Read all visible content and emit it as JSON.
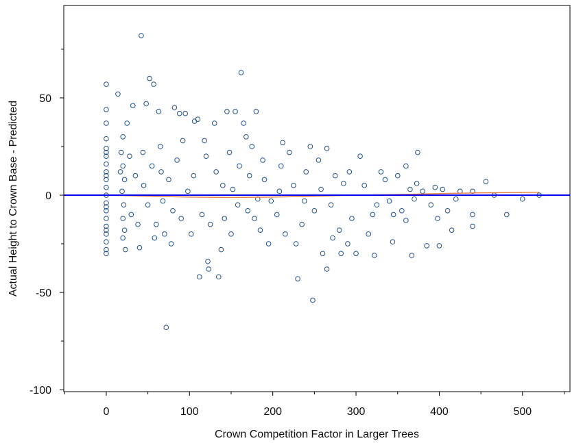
{
  "chart_data": {
    "type": "scatter",
    "x_label": "Crown Competition Factor in Larger Trees",
    "y_label": "Actual Height to Crown Base - Predicted",
    "xlim": [
      -51,
      557
    ],
    "ylim": [
      -101,
      97.5
    ],
    "xticks": [
      0,
      100,
      200,
      300,
      400,
      500
    ],
    "yticks": [
      -100,
      -50,
      0,
      50
    ],
    "xticks_minor": [
      -50,
      50,
      150,
      250,
      350,
      450,
      550
    ],
    "yticks_minor": [
      -75,
      -25,
      25,
      75
    ],
    "reference_line": {
      "y": 0,
      "color": "#0000ee"
    },
    "trend": {
      "color": "#e8824a",
      "x": [
        0,
        50,
        100,
        150,
        200,
        250,
        300,
        350,
        400,
        450,
        520
      ],
      "values": [
        0,
        -0.5,
        -1,
        -1.2,
        -1,
        -0.5,
        0,
        0.3,
        0.8,
        1.2,
        1.5
      ]
    },
    "series": [
      {
        "color": "#1f4f8a",
        "x": [
          0,
          0,
          0,
          0,
          0,
          0,
          0,
          0,
          0,
          0,
          0,
          0,
          0,
          0,
          0,
          0,
          0,
          0,
          0,
          0,
          0,
          0,
          0,
          14,
          20,
          18,
          20,
          22,
          19,
          21,
          20,
          22,
          20,
          23,
          17,
          25,
          28,
          30,
          32,
          42,
          48,
          52,
          57,
          63,
          72,
          40,
          35,
          45,
          50,
          55,
          60,
          65,
          70,
          75,
          80,
          85,
          90,
          95,
          88,
          82,
          38,
          44,
          58,
          66,
          78,
          92,
          98,
          68,
          106,
          110,
          112,
          122,
          123,
          130,
          135,
          145,
          155,
          162,
          165,
          180,
          105,
          115,
          120,
          125,
          140,
          150,
          160,
          170,
          175,
          185,
          190,
          195,
          102,
          118,
          138,
          148,
          158,
          168,
          178,
          188,
          198,
          132,
          142,
          152,
          172,
          182,
          212,
          220,
          230,
          248,
          245,
          265,
          265,
          282,
          300,
          260,
          290,
          205,
          210,
          215,
          225,
          235,
          240,
          250,
          255,
          270,
          275,
          280,
          285,
          295,
          208,
          228,
          238,
          258,
          272,
          292,
          305,
          315,
          320,
          322,
          330,
          344,
          345,
          350,
          360,
          360,
          367,
          373,
          374,
          380,
          385,
          390,
          395,
          310,
          325,
          335,
          340,
          355,
          365,
          370,
          398,
          400,
          404,
          410,
          415,
          420,
          425,
          440,
          440,
          440,
          456,
          466,
          481,
          500,
          520
        ],
        "values": [
          57,
          44,
          37,
          29,
          24,
          20,
          16,
          12,
          8,
          4,
          0,
          -4,
          -8,
          -12,
          -16,
          -20,
          -24,
          -28,
          -30,
          22,
          -18,
          10,
          -6,
          52,
          30,
          22,
          15,
          8,
          2,
          -5,
          -12,
          -18,
          -22,
          -28,
          12,
          37,
          20,
          -10,
          46,
          82,
          47,
          60,
          57,
          43,
          -68,
          -27,
          10,
          5,
          -5,
          15,
          -15,
          25,
          -20,
          8,
          -8,
          18,
          -12,
          42,
          42,
          45,
          -15,
          22,
          -22,
          12,
          -25,
          28,
          2,
          -3,
          38,
          39,
          -42,
          -34,
          -38,
          37,
          -42,
          43,
          43,
          63,
          37,
          43,
          10,
          -10,
          20,
          -15,
          5,
          -20,
          15,
          -8,
          25,
          -18,
          8,
          -25,
          -20,
          28,
          -28,
          22,
          -5,
          30,
          -12,
          18,
          -3,
          12,
          -12,
          3,
          10,
          -2,
          27,
          22,
          -43,
          -54,
          25,
          24,
          -38,
          -30,
          -30,
          -30,
          -25,
          -10,
          15,
          -20,
          5,
          -15,
          12,
          -8,
          18,
          -5,
          10,
          -18,
          6,
          -12,
          2,
          -25,
          -3,
          3,
          -22,
          12,
          20,
          -20,
          -10,
          -31,
          12,
          -24,
          -10,
          10,
          15,
          -13,
          -31,
          6,
          22,
          2,
          -26,
          -5,
          4,
          5,
          -5,
          8,
          -3,
          -8,
          3,
          -2,
          -12,
          -26,
          3,
          -8,
          -18,
          -2,
          2,
          -16,
          -10,
          2,
          7,
          0,
          -10,
          -2,
          0
        ]
      }
    ]
  }
}
